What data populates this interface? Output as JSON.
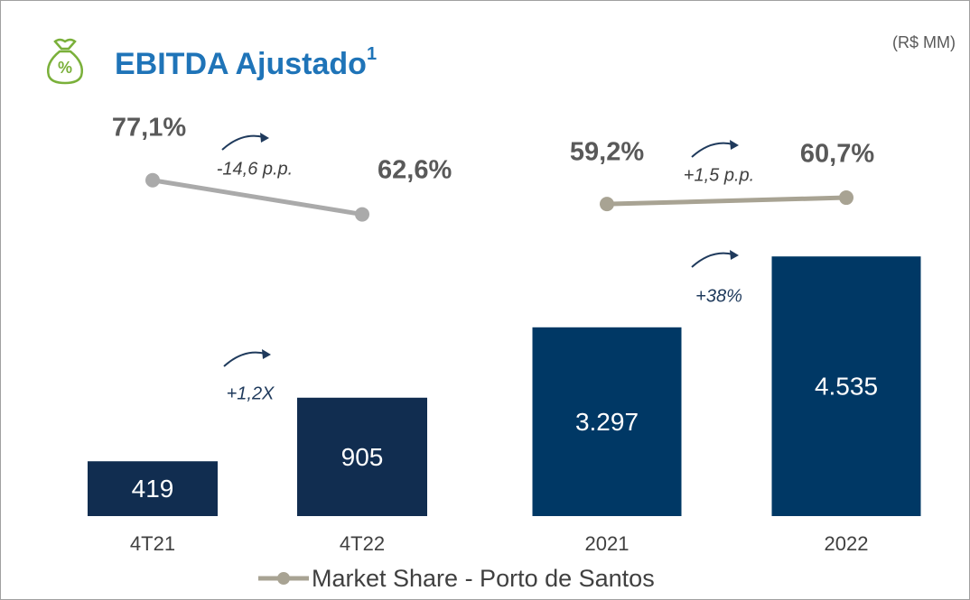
{
  "title": "EBITDA Ajustado",
  "title_sup": "1",
  "unit": "(R$ MM)",
  "legend": "Market Share - Porto de Santos",
  "legend_color": "#a8a393",
  "chart_data": [
    {
      "type": "bar",
      "categories": [
        "4T21",
        "4T22"
      ],
      "values": [
        419,
        905
      ],
      "value_labels": [
        "419",
        "905"
      ],
      "color": "#112d50",
      "ylim": [
        0,
        2000
      ],
      "bar_change": "+1,2X",
      "line": {
        "values": [
          77.1,
          62.6
        ],
        "value_labels": [
          "77,1%",
          "62,6%"
        ],
        "color": "#aaaaaa"
      },
      "y2lim": [
        54,
        100
      ],
      "line_change": "-14,6 p.p."
    },
    {
      "type": "bar",
      "categories": [
        "2021",
        "2022"
      ],
      "values": [
        3297,
        4535
      ],
      "value_labels": [
        "3.297",
        "4.535"
      ],
      "color": "#003865",
      "ylim": [
        0,
        4570
      ],
      "bar_change": "+38%",
      "line": {
        "values": [
          59.2,
          60.7
        ],
        "value_labels": [
          "59,2%",
          "60,7%"
        ],
        "color": "#a8a393"
      },
      "y2lim": [
        52,
        77.5
      ],
      "line_change": "+1,5 p.p."
    }
  ]
}
